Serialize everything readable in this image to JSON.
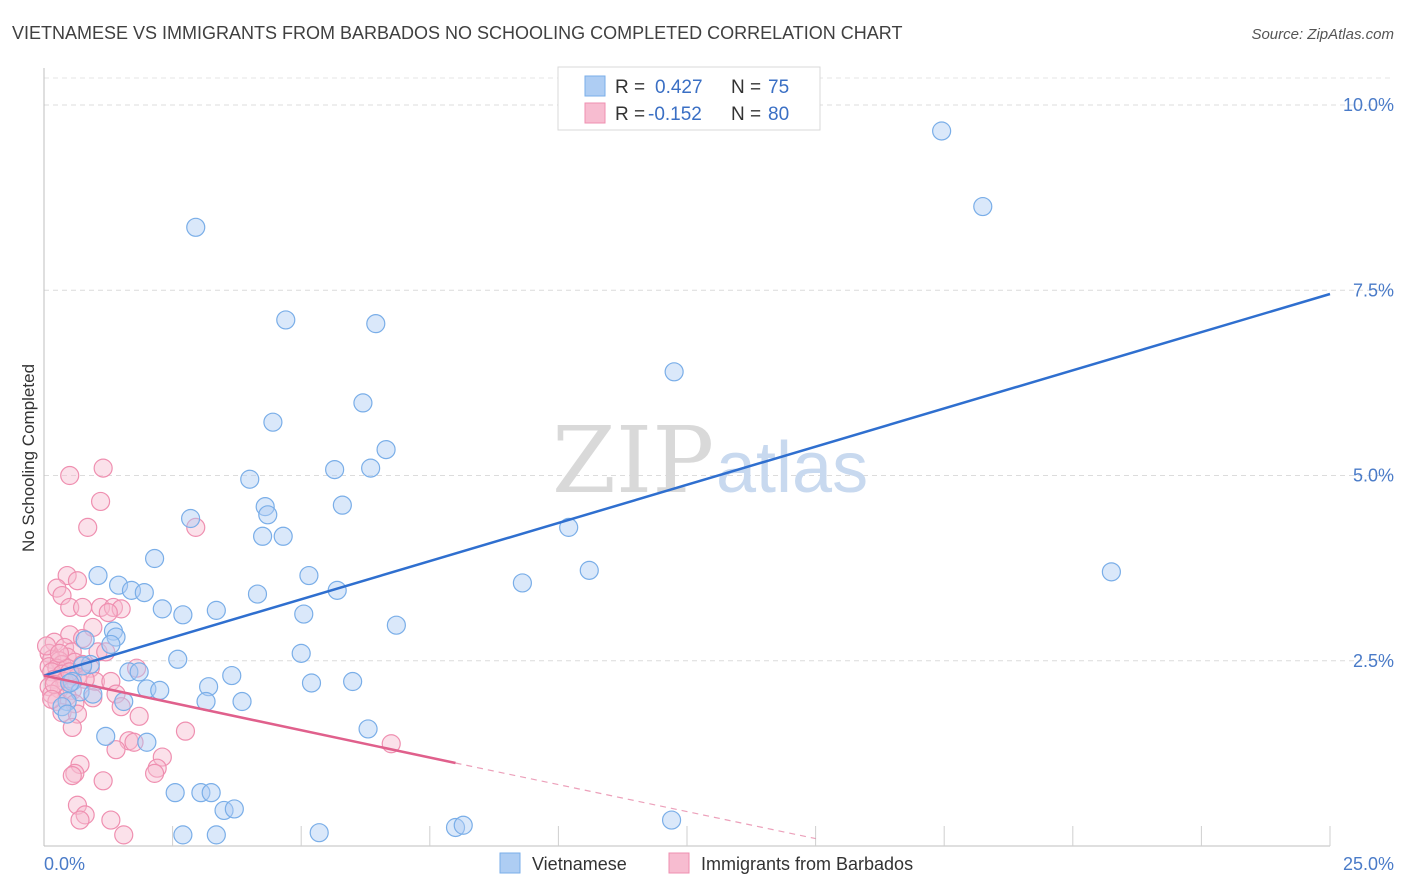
{
  "chart_data": {
    "type": "scatter",
    "title": "VIETNAMESE VS IMMIGRANTS FROM BARBADOS NO SCHOOLING COMPLETED CORRELATION CHART",
    "source": "Source: ZipAtlas.com",
    "ylabel": "No Schooling Completed",
    "xlim": [
      0,
      25
    ],
    "ylim": [
      0,
      10.5
    ],
    "x_tick_labels": {
      "left": "0.0%",
      "right": "25.0%"
    },
    "y_ticks": [
      {
        "value": 2.5,
        "label": "2.5%"
      },
      {
        "value": 5.0,
        "label": "5.0%"
      },
      {
        "value": 7.5,
        "label": "7.5%"
      },
      {
        "value": 10.0,
        "label": "10.0%"
      }
    ],
    "watermark": {
      "zip": "ZIP",
      "atlas": "atlas"
    },
    "legend": {
      "r_label": "R =",
      "n_label": "N =",
      "entries": [
        {
          "name": "Vietnamese",
          "r": "0.427",
          "n": "75",
          "color": "#7aaee8",
          "fill": "#aecdf3"
        },
        {
          "name": "Immigrants from Barbados",
          "r": "-0.152",
          "n": "80",
          "color": "#ef8fb0",
          "fill": "#f7bcd0"
        }
      ]
    },
    "series": [
      {
        "name": "Vietnamese",
        "color": "#6fa3e0",
        "trend": {
          "x0": 0.0,
          "y0": 2.3,
          "x1": 25.0,
          "y1": 7.45,
          "color": "#2f6fcf"
        },
        "points": [
          [
            17.45,
            9.65
          ],
          [
            18.25,
            8.63
          ],
          [
            2.95,
            8.35
          ],
          [
            4.7,
            7.1
          ],
          [
            6.45,
            7.05
          ],
          [
            12.25,
            6.4
          ],
          [
            6.2,
            5.98
          ],
          [
            4.45,
            5.72
          ],
          [
            6.65,
            5.35
          ],
          [
            5.65,
            5.08
          ],
          [
            6.35,
            5.1
          ],
          [
            4.0,
            4.95
          ],
          [
            4.3,
            4.58
          ],
          [
            5.8,
            4.6
          ],
          [
            4.35,
            4.47
          ],
          [
            2.85,
            4.42
          ],
          [
            10.2,
            4.3
          ],
          [
            4.25,
            4.18
          ],
          [
            4.65,
            4.18
          ],
          [
            2.15,
            3.88
          ],
          [
            1.05,
            3.65
          ],
          [
            10.6,
            3.72
          ],
          [
            20.75,
            3.7
          ],
          [
            5.15,
            3.65
          ],
          [
            9.3,
            3.55
          ],
          [
            1.45,
            3.52
          ],
          [
            1.7,
            3.45
          ],
          [
            1.95,
            3.42
          ],
          [
            5.7,
            3.45
          ],
          [
            4.15,
            3.4
          ],
          [
            2.3,
            3.2
          ],
          [
            3.35,
            3.18
          ],
          [
            2.7,
            3.12
          ],
          [
            5.05,
            3.13
          ],
          [
            6.85,
            2.98
          ],
          [
            1.35,
            2.9
          ],
          [
            0.8,
            2.78
          ],
          [
            1.4,
            2.82
          ],
          [
            1.3,
            2.72
          ],
          [
            5.0,
            2.6
          ],
          [
            2.6,
            2.52
          ],
          [
            0.9,
            2.45
          ],
          [
            0.75,
            2.43
          ],
          [
            1.65,
            2.35
          ],
          [
            1.85,
            2.35
          ],
          [
            3.65,
            2.3
          ],
          [
            0.55,
            2.22
          ],
          [
            5.2,
            2.2
          ],
          [
            6.0,
            2.22
          ],
          [
            3.2,
            2.15
          ],
          [
            2.0,
            2.12
          ],
          [
            2.25,
            2.1
          ],
          [
            0.7,
            2.08
          ],
          [
            0.95,
            2.05
          ],
          [
            1.55,
            1.95
          ],
          [
            3.15,
            1.95
          ],
          [
            3.85,
            1.95
          ],
          [
            0.45,
            1.95
          ],
          [
            0.35,
            1.88
          ],
          [
            0.45,
            1.78
          ],
          [
            6.3,
            1.58
          ],
          [
            1.2,
            1.48
          ],
          [
            2.0,
            1.4
          ],
          [
            2.55,
            0.72
          ],
          [
            3.05,
            0.72
          ],
          [
            3.25,
            0.72
          ],
          [
            3.5,
            0.48
          ],
          [
            3.7,
            0.5
          ],
          [
            8.0,
            0.25
          ],
          [
            8.15,
            0.28
          ],
          [
            12.2,
            0.35
          ],
          [
            2.7,
            0.15
          ],
          [
            3.35,
            0.15
          ],
          [
            5.35,
            0.18
          ],
          [
            0.5,
            2.2
          ]
        ]
      },
      {
        "name": "Immigrants from Barbados",
        "color": "#ec8bae",
        "trend": {
          "x0": 0.0,
          "y0": 2.3,
          "x1": 8.0,
          "y1": 1.12,
          "color": "#e0608c"
        },
        "trend_dashed": {
          "x0": 8.0,
          "y0": 1.12,
          "x1": 15.0,
          "y1": 0.1
        },
        "points": [
          [
            1.15,
            5.1
          ],
          [
            0.5,
            5.0
          ],
          [
            1.1,
            4.65
          ],
          [
            0.85,
            4.3
          ],
          [
            2.95,
            4.3
          ],
          [
            0.45,
            3.65
          ],
          [
            0.65,
            3.58
          ],
          [
            0.25,
            3.48
          ],
          [
            0.35,
            3.38
          ],
          [
            0.5,
            3.22
          ],
          [
            1.1,
            3.22
          ],
          [
            0.75,
            3.22
          ],
          [
            1.35,
            3.22
          ],
          [
            1.5,
            3.2
          ],
          [
            1.25,
            3.15
          ],
          [
            0.95,
            2.95
          ],
          [
            0.5,
            2.85
          ],
          [
            0.75,
            2.8
          ],
          [
            0.2,
            2.75
          ],
          [
            0.4,
            2.68
          ],
          [
            0.55,
            2.62
          ],
          [
            0.1,
            2.6
          ],
          [
            1.05,
            2.62
          ],
          [
            1.2,
            2.62
          ],
          [
            0.45,
            2.55
          ],
          [
            0.15,
            2.52
          ],
          [
            0.3,
            2.5
          ],
          [
            0.6,
            2.48
          ],
          [
            0.35,
            2.45
          ],
          [
            0.75,
            2.45
          ],
          [
            0.1,
            2.42
          ],
          [
            0.25,
            2.4
          ],
          [
            0.45,
            2.4
          ],
          [
            0.9,
            2.4
          ],
          [
            1.8,
            2.4
          ],
          [
            0.15,
            2.35
          ],
          [
            0.35,
            2.32
          ],
          [
            0.55,
            2.3
          ],
          [
            0.65,
            2.28
          ],
          [
            0.2,
            2.25
          ],
          [
            0.4,
            2.22
          ],
          [
            1.0,
            2.22
          ],
          [
            1.3,
            2.22
          ],
          [
            0.1,
            2.15
          ],
          [
            0.3,
            2.12
          ],
          [
            0.55,
            2.1
          ],
          [
            0.15,
            2.05
          ],
          [
            0.45,
            2.02
          ],
          [
            1.4,
            2.05
          ],
          [
            0.95,
            2.0
          ],
          [
            0.25,
            1.95
          ],
          [
            0.6,
            1.92
          ],
          [
            1.5,
            1.88
          ],
          [
            0.35,
            1.8
          ],
          [
            0.65,
            1.78
          ],
          [
            1.85,
            1.75
          ],
          [
            2.75,
            1.55
          ],
          [
            0.55,
            1.6
          ],
          [
            1.65,
            1.42
          ],
          [
            1.75,
            1.4
          ],
          [
            6.75,
            1.38
          ],
          [
            1.4,
            1.3
          ],
          [
            2.3,
            1.2
          ],
          [
            0.7,
            1.1
          ],
          [
            2.2,
            1.05
          ],
          [
            0.6,
            0.98
          ],
          [
            2.15,
            0.98
          ],
          [
            0.55,
            0.95
          ],
          [
            1.15,
            0.88
          ],
          [
            0.65,
            0.55
          ],
          [
            0.8,
            0.42
          ],
          [
            0.7,
            0.35
          ],
          [
            1.3,
            0.35
          ],
          [
            1.55,
            0.15
          ],
          [
            0.05,
            2.7
          ],
          [
            0.2,
            2.18
          ],
          [
            0.5,
            2.35
          ],
          [
            0.3,
            2.6
          ],
          [
            0.8,
            2.25
          ],
          [
            0.15,
            1.98
          ]
        ]
      }
    ],
    "bottom_legend": [
      "Vietnamese",
      "Immigrants from Barbados"
    ]
  }
}
